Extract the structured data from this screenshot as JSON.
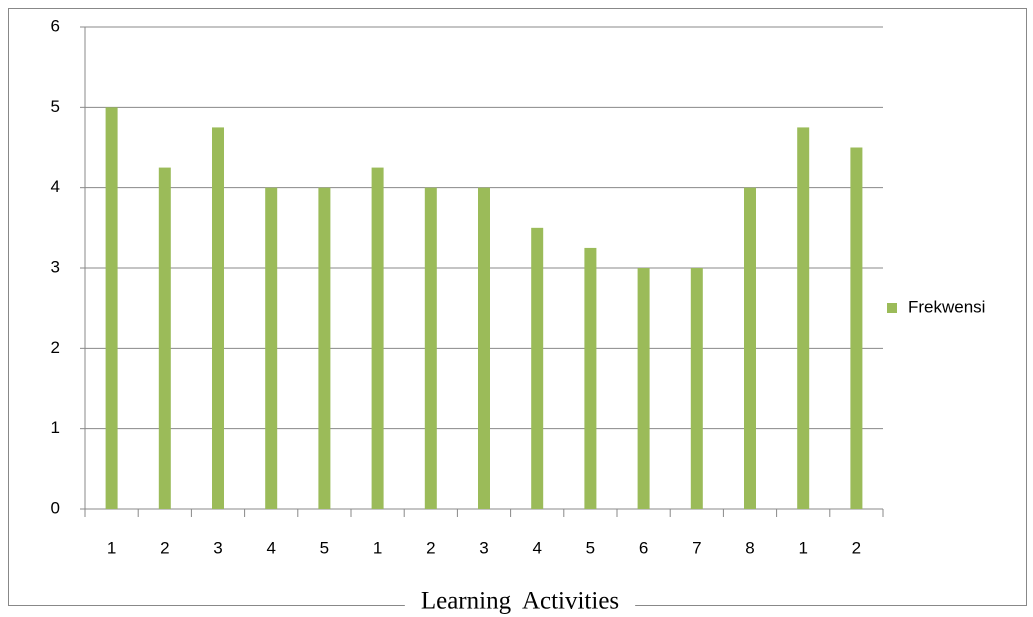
{
  "chart_data": {
    "type": "bar",
    "x_label": "Learning Activities",
    "categories": [
      "1",
      "2",
      "3",
      "4",
      "5",
      "1",
      "2",
      "3",
      "4",
      "5",
      "6",
      "7",
      "8",
      "1",
      "2"
    ],
    "series": [
      {
        "name": "Frekwensi",
        "color": "#9bbb59",
        "values": [
          5,
          4.25,
          4.75,
          4,
          4,
          4.25,
          4,
          4,
          3.5,
          3.25,
          3,
          3,
          4,
          4.75,
          4.5
        ]
      }
    ],
    "ylim": [
      0,
      6
    ],
    "yticks": [
      0,
      1,
      2,
      3,
      4,
      5,
      6
    ],
    "grid": true,
    "legend": "right"
  }
}
